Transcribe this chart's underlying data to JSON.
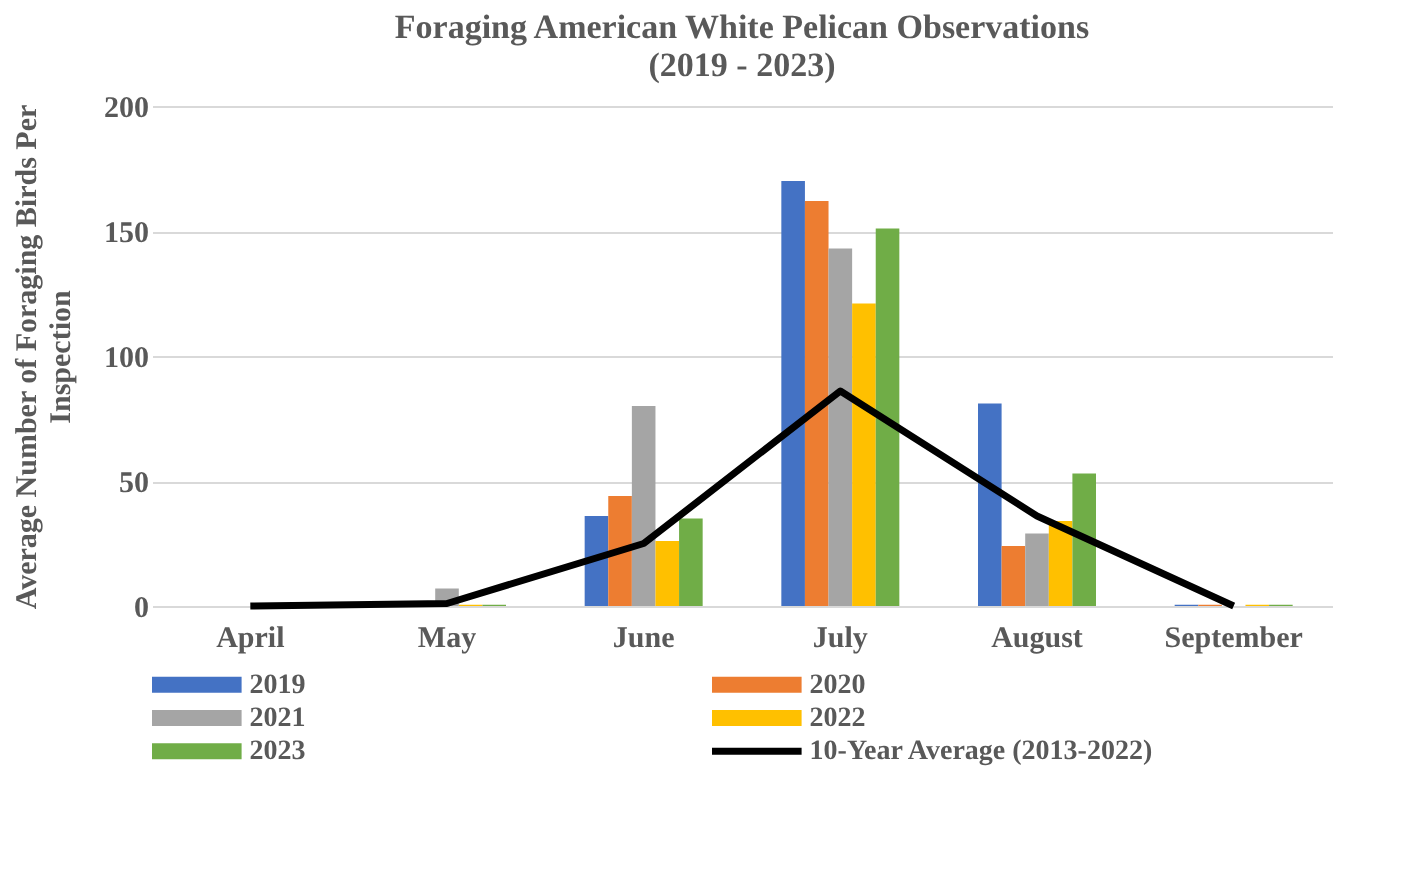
{
  "chart_data": {
    "type": "bar",
    "title": [
      "Foraging American White Pelican Observations",
      "(2019 - 2023)"
    ],
    "ylabel": [
      "Average Number of Foraging Birds Per",
      "Inspection"
    ],
    "categories": [
      "April",
      "May",
      "June",
      "July",
      "August",
      "September"
    ],
    "series": [
      {
        "name": "2019",
        "color": "#4472c4",
        "values": [
          null,
          0,
          36,
          170,
          81,
          0.5
        ]
      },
      {
        "name": "2020",
        "color": "#ed7d31",
        "values": [
          null,
          0.5,
          44,
          162,
          24,
          0.5
        ]
      },
      {
        "name": "2021",
        "color": "#a5a5a5",
        "values": [
          null,
          7,
          80,
          143,
          29,
          null
        ]
      },
      {
        "name": "2022",
        "color": "#ffc000",
        "values": [
          null,
          0.5,
          26,
          121,
          34,
          0.5
        ]
      },
      {
        "name": "2023",
        "color": "#70ad47",
        "values": [
          null,
          0.5,
          35,
          151,
          53,
          0.5
        ]
      },
      {
        "name": "10-Year Average (2013-2022)",
        "color": "#000000",
        "type": "line",
        "values": [
          0,
          1,
          25,
          86,
          36,
          0
        ]
      }
    ],
    "ylim": [
      0,
      200
    ],
    "yticks": [
      0,
      50,
      100,
      150,
      200
    ],
    "grid": "y",
    "legend": "bottom"
  }
}
